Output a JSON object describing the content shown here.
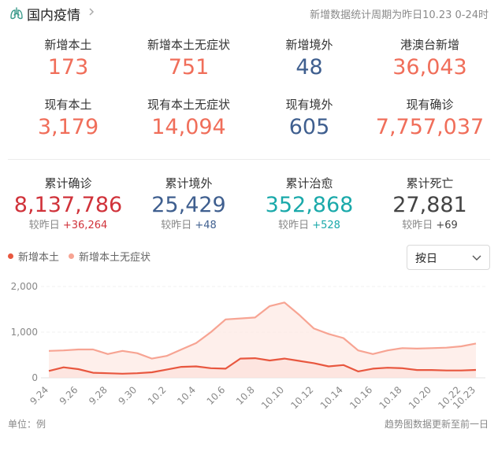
{
  "header": {
    "title": "国内疫情",
    "note": "新增数据统计周期为昨日10.23 0-24时"
  },
  "stats_row1": [
    {
      "label": "新增本土",
      "value": "173"
    },
    {
      "label": "新增本土无症状",
      "value": "751"
    },
    {
      "label": "新增境外",
      "value": "48"
    },
    {
      "label": "港澳台新增",
      "value": "36,043"
    }
  ],
  "stats_row2": [
    {
      "label": "现有本土",
      "value": "3,179"
    },
    {
      "label": "现有本土无症状",
      "value": "14,094"
    },
    {
      "label": "现有境外",
      "value": "605"
    },
    {
      "label": "现有确诊",
      "value": "7,757,037"
    }
  ],
  "cumulative": [
    {
      "label": "累计确诊",
      "value": "8,137,786",
      "delta_prefix": "较昨日",
      "delta": "+36,264"
    },
    {
      "label": "累计境外",
      "value": "25,429",
      "delta_prefix": "较昨日",
      "delta": "+48"
    },
    {
      "label": "累计治愈",
      "value": "352,868",
      "delta_prefix": "较昨日",
      "delta": "+528"
    },
    {
      "label": "累计死亡",
      "value": "27,881",
      "delta_prefix": "较昨日",
      "delta": "+69"
    }
  ],
  "colors": {
    "local_new": "#e8573f",
    "asymptomatic": "#f7a493",
    "accent_red": "#f06e5a",
    "navy": "#3f5f8f",
    "teal": "#1aa9aa",
    "deep_red": "#d0323a"
  },
  "select": {
    "label": "按日"
  },
  "footer": {
    "unit": "单位：例",
    "note": "趋势图数据更新至前一日"
  },
  "chart_data": {
    "type": "area",
    "x": [
      "9.24",
      "9.25",
      "9.26",
      "9.27",
      "9.28",
      "9.29",
      "9.30",
      "10.1",
      "10.2",
      "10.3",
      "10.4",
      "10.5",
      "10.6",
      "10.7",
      "10.8",
      "10.9",
      "10.10",
      "10.11",
      "10.12",
      "10.13",
      "10.14",
      "10.15",
      "10.16",
      "10.17",
      "10.18",
      "10.19",
      "10.20",
      "10.21",
      "10.22",
      "10.23"
    ],
    "tick_labels": [
      "9.24",
      "9.26",
      "9.28",
      "9.30",
      "10.2",
      "10.4",
      "10.6",
      "10.8",
      "10.10",
      "10.12",
      "10.14",
      "10.16",
      "10.18",
      "10.20",
      "10.22",
      "10.23"
    ],
    "series": [
      {
        "name": "新增本土",
        "values": [
          150,
          230,
          190,
          110,
          100,
          90,
          100,
          120,
          180,
          240,
          250,
          210,
          200,
          420,
          430,
          380,
          420,
          370,
          320,
          250,
          280,
          140,
          200,
          220,
          210,
          170,
          170,
          160,
          160,
          173
        ]
      },
      {
        "name": "新增本土无症状",
        "values": [
          590,
          600,
          620,
          620,
          520,
          590,
          540,
          420,
          480,
          620,
          760,
          1000,
          1280,
          1300,
          1320,
          1570,
          1650,
          1380,
          1080,
          960,
          870,
          600,
          520,
          600,
          650,
          640,
          650,
          660,
          690,
          751
        ]
      }
    ],
    "ylim": [
      0,
      2000
    ],
    "yticks": [
      "0",
      "1,000",
      "2,000"
    ],
    "grid": true,
    "legend_position": "top-left"
  }
}
